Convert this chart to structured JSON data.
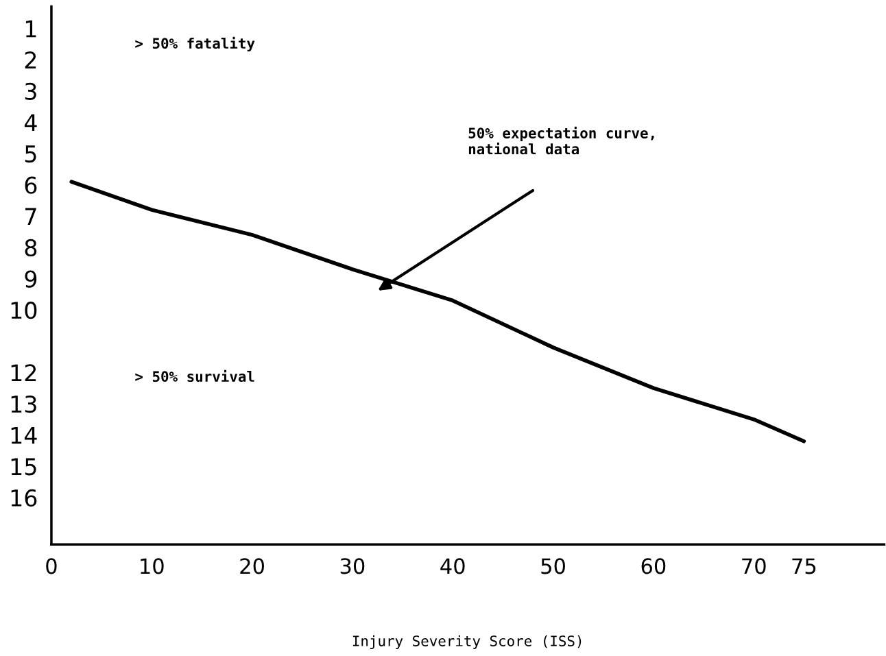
{
  "chart_data": {
    "type": "line",
    "xlabel": "Injury Severity Score (ISS)",
    "x": [
      2,
      10,
      20,
      30,
      40,
      50,
      60,
      70,
      75
    ],
    "series": [
      {
        "color": "#000000",
        "values": [
          5.9,
          6.8,
          7.6,
          8.7,
          9.7,
          11.2,
          12.5,
          13.5,
          14.2
        ]
      }
    ],
    "xlim": [
      0,
      83
    ],
    "xticks": [
      0,
      10,
      20,
      30,
      40,
      50,
      60,
      70,
      75
    ],
    "ylim": [
      17.5,
      0.3
    ],
    "yticks": [
      1,
      2,
      3,
      4,
      5,
      6,
      7,
      8,
      9,
      10,
      12,
      13,
      14,
      15,
      16
    ],
    "annotations": [
      "> 50% fatality",
      "> 50% survival",
      "50% expectation curve,\nnational data"
    ],
    "grid": false,
    "legend": false,
    "marker": "none",
    "line_style": "solid"
  }
}
